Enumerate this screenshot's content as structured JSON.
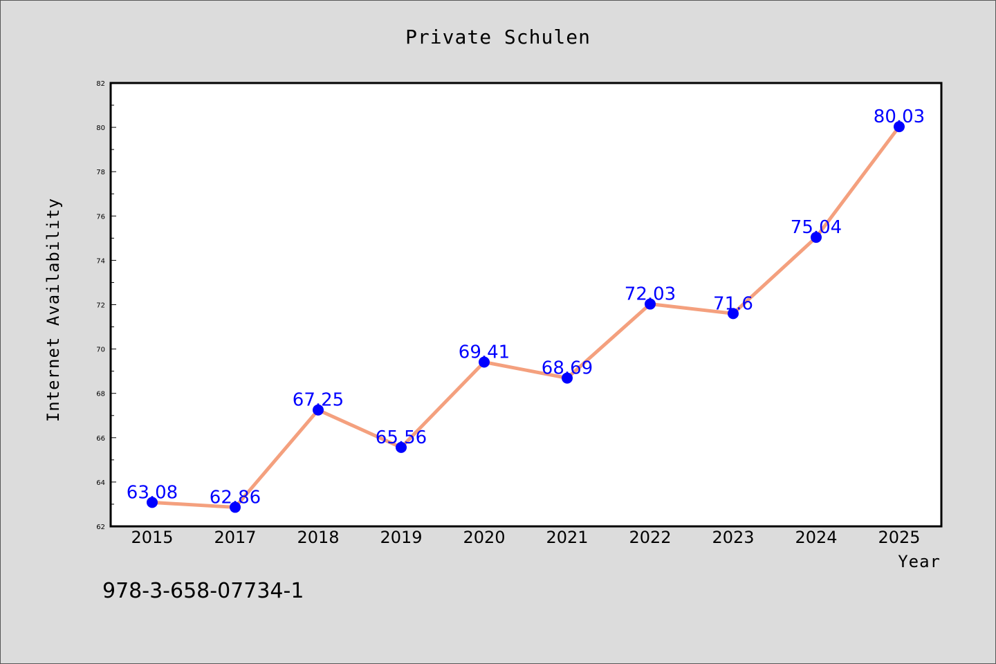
{
  "chart_data": {
    "type": "line",
    "title": "Private Schulen",
    "xlabel": "Year",
    "ylabel": "Internet Availability",
    "categories": [
      "2015",
      "2017",
      "2018",
      "2019",
      "2020",
      "2021",
      "2022",
      "2023",
      "2024",
      "2025"
    ],
    "series": [
      {
        "values": [
          63.08,
          62.86,
          67.25,
          65.56,
          69.41,
          68.69,
          72.03,
          71.6,
          75.04,
          80.03
        ],
        "data_labels": [
          "63.08",
          "62.86",
          "67.25",
          "65.56",
          "69.41",
          "68.69",
          "72.03",
          "71.6",
          "75.04",
          "80.03"
        ],
        "line_color": "#f4a07e",
        "marker_color": "#0000ff"
      }
    ],
    "ylim": [
      62,
      82
    ],
    "yticks": [
      "62",
      "64",
      "66",
      "68",
      "70",
      "72",
      "74",
      "76",
      "78",
      "80",
      "82"
    ],
    "grid": false,
    "legend": "none"
  },
  "annotation": {
    "isbn": "978-3-658-07734-1"
  },
  "colors": {
    "background": "#dcdcdc",
    "plot_background": "#ffffff",
    "line": "#f4a07e",
    "marker": "#0000ff",
    "label": "#0000ff"
  }
}
